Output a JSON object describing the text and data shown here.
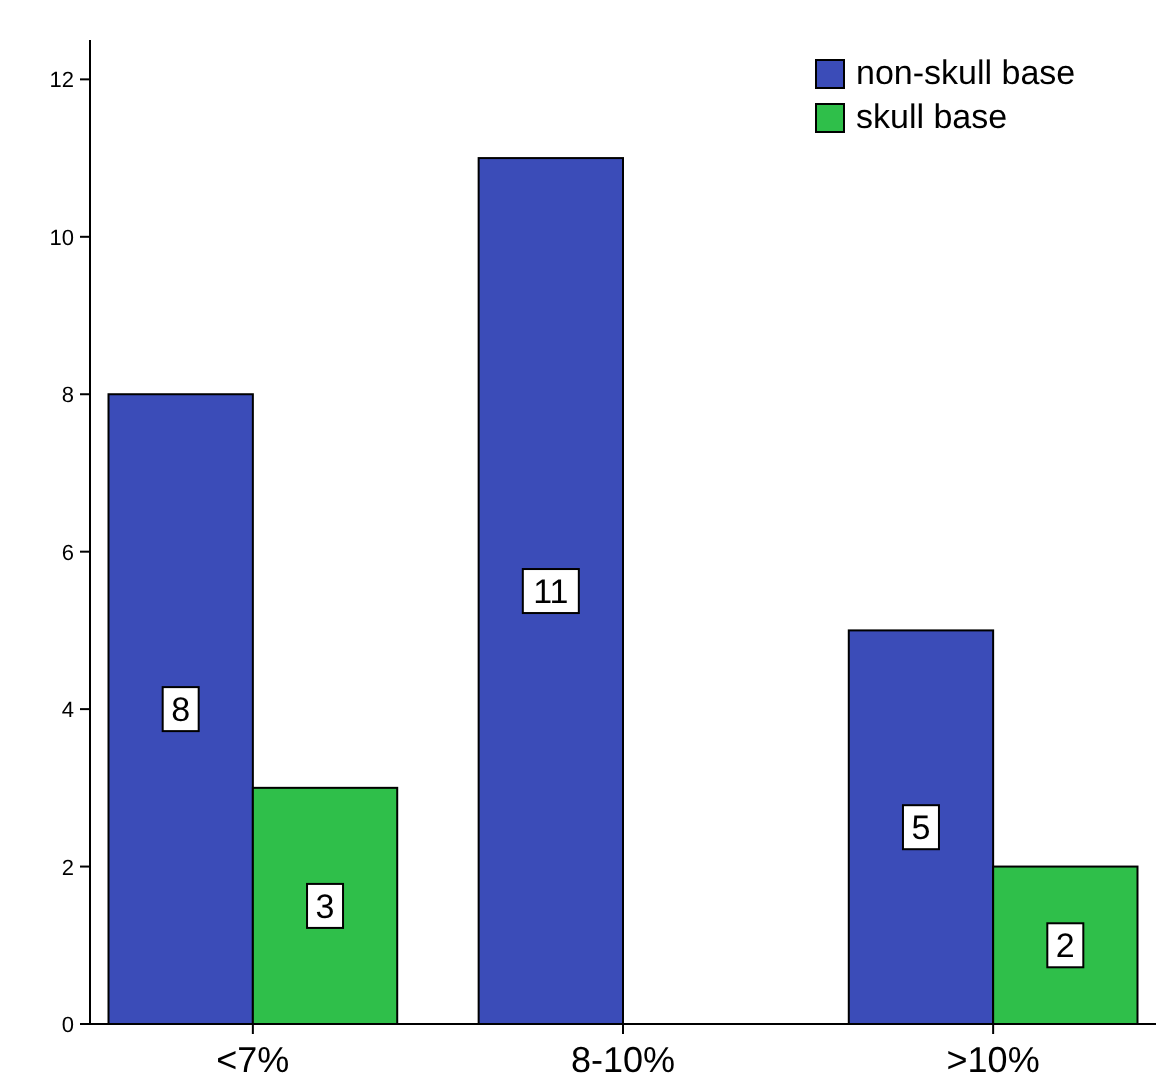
{
  "chart_data": {
    "type": "bar",
    "categories": [
      "<7%",
      "8-10%",
      ">10%"
    ],
    "series": [
      {
        "name": "non-skull base",
        "color": "#3b4cb8",
        "values": [
          8,
          11,
          5
        ],
        "value_labels": [
          "8",
          "11",
          "5"
        ]
      },
      {
        "name": "skull base",
        "color": "#2fbf4a",
        "values": [
          3,
          0,
          2
        ],
        "value_labels": [
          "3",
          null,
          "2"
        ]
      }
    ],
    "ylim": [
      0,
      12.5
    ],
    "yticks": [
      0,
      2,
      4,
      6,
      8,
      10,
      12
    ],
    "grid": false,
    "legend": "top right"
  }
}
